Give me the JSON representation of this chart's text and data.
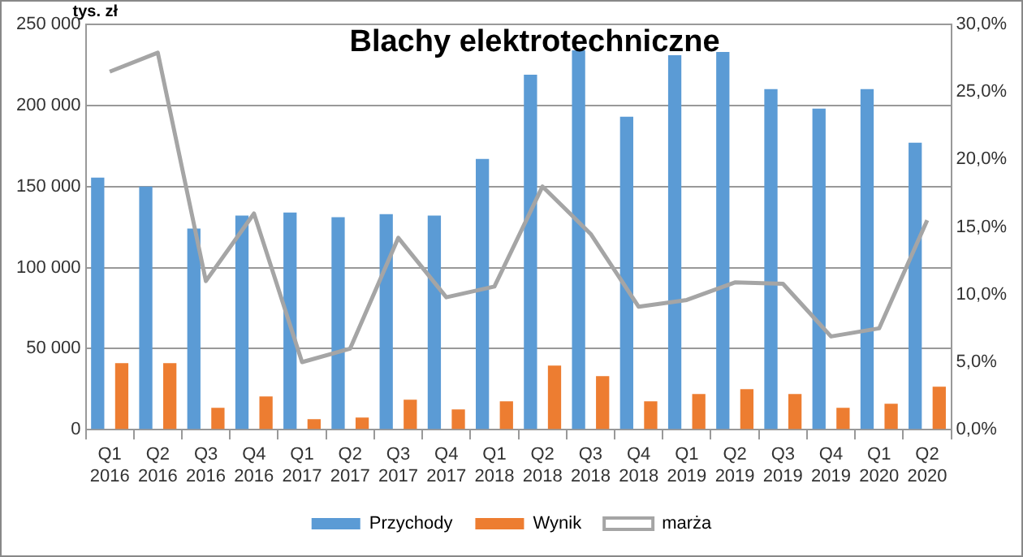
{
  "chart_data": {
    "type": "bar",
    "title": "Blachy elektrotechniczne",
    "ylabel": "tys. zł",
    "categories": [
      "Q1 2016",
      "Q2 2016",
      "Q3 2016",
      "Q4 2016",
      "Q1 2017",
      "Q2 2017",
      "Q3 2017",
      "Q4 2017",
      "Q1 2018",
      "Q2 2018",
      "Q3 2018",
      "Q4 2018",
      "Q1 2019",
      "Q2 2019",
      "Q3 2019",
      "Q4 2019",
      "Q1 2020",
      "Q2 2020"
    ],
    "series": [
      {
        "name": "Przychody",
        "color": "#5b9bd5",
        "values": [
          155500,
          150000,
          124000,
          132000,
          134000,
          131000,
          133000,
          132000,
          167000,
          219000,
          234000,
          193000,
          231000,
          233000,
          210000,
          198000,
          210000,
          177000
        ]
      },
      {
        "name": "Wynik",
        "color": "#ed7d31",
        "values": [
          41000,
          41000,
          13500,
          20500,
          6500,
          7500,
          18500,
          12500,
          17500,
          39500,
          33000,
          17500,
          22000,
          25000,
          22000,
          13500,
          16000,
          26500
        ]
      },
      {
        "name": "marża",
        "type": "line",
        "axis": "y2",
        "color": "#a5a5a5",
        "marker": "none",
        "values": [
          26.5,
          27.9,
          11.0,
          16.0,
          5.0,
          6.0,
          14.2,
          9.8,
          10.6,
          18.0,
          14.5,
          9.1,
          9.6,
          10.9,
          10.8,
          6.9,
          7.5,
          15.5
        ]
      }
    ],
    "ylim": [
      0,
      250000
    ],
    "yticks": [
      {
        "value": 0,
        "label": "0"
      },
      {
        "value": 50000,
        "label": "50 000"
      },
      {
        "value": 100000,
        "label": "100 000"
      },
      {
        "value": 150000,
        "label": "150 000"
      },
      {
        "value": 200000,
        "label": "200 000"
      },
      {
        "value": 250000,
        "label": "250 000"
      }
    ],
    "y2lim": [
      0,
      30
    ],
    "y2ticks": [
      {
        "value": 0,
        "label": "0,0%"
      },
      {
        "value": 5,
        "label": "5,0%"
      },
      {
        "value": 10,
        "label": "10,0%"
      },
      {
        "value": 15,
        "label": "15,0%"
      },
      {
        "value": 20,
        "label": "20,0%"
      },
      {
        "value": 25,
        "label": "25,0%"
      },
      {
        "value": 30,
        "label": "30,0%"
      }
    ],
    "grid": "y",
    "legend": "bottom"
  }
}
